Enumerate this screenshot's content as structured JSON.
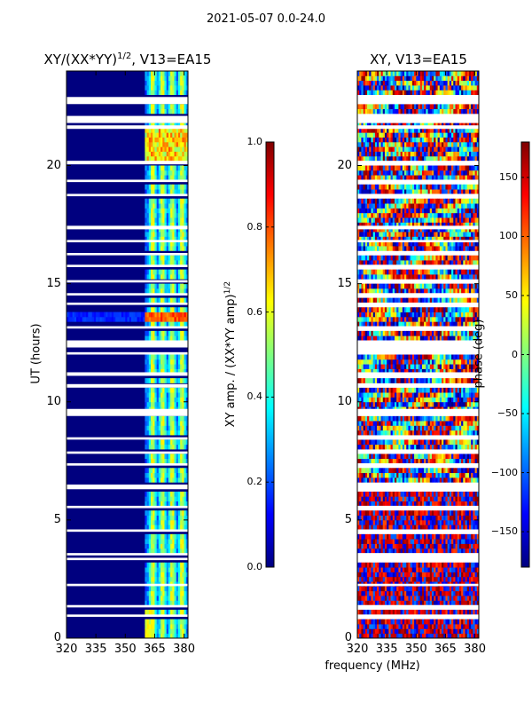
{
  "figure": {
    "suptitle": "2021-05-07 0.0-24.0"
  },
  "colors": {
    "jet": [
      "#00007f",
      "#0000ff",
      "#007fff",
      "#00ffff",
      "#7fff7f",
      "#ffff00",
      "#ff7f00",
      "#ff0000",
      "#7f0000"
    ],
    "gap": "#ffffff",
    "axis": "#000000"
  },
  "chart_data": [
    {
      "type": "heatmap",
      "title_main": "XY/(XX*YY)",
      "title_sup": "1/2",
      "title_suffix": ", V13=EA15",
      "xlabel": "",
      "ylabel": "UT (hours)",
      "xlim": [
        320,
        382
      ],
      "ylim": [
        0,
        24
      ],
      "xticks": [
        320,
        335,
        350,
        365,
        380
      ],
      "yticks": [
        0,
        5,
        10,
        15,
        20
      ],
      "colorbar": {
        "label_main": "XY amp. / (XX*YY amp)",
        "label_sup": "1/2",
        "range": [
          0.0,
          1.0
        ],
        "ticks": [
          "0.0",
          "0.2",
          "0.4",
          "0.6",
          "0.8",
          "1.0"
        ],
        "tick_values": [
          0.0,
          0.2,
          0.4,
          0.6,
          0.8,
          1.0
        ]
      },
      "quantity": "amplitude",
      "band_start_mhz": 360,
      "band_peaks_mhz": [
        364,
        369,
        374,
        379
      ],
      "hot_time_hours": [
        13.4,
        13.8
      ],
      "hot_time2_hours": [
        20.2,
        21.6
      ]
    },
    {
      "type": "heatmap",
      "title_main": "XY, V13=EA15",
      "xlabel": "frequency (MHz)",
      "ylabel": "",
      "xlim": [
        320,
        382
      ],
      "ylim": [
        0,
        24
      ],
      "xticks": [
        320,
        335,
        350,
        365,
        380
      ],
      "yticks": [
        0,
        5,
        10,
        15,
        20
      ],
      "colorbar": {
        "label_main": "phase (deg)",
        "range": [
          -180,
          180
        ],
        "ticks": [
          "−150",
          "−100",
          "−50",
          "0",
          "50",
          "100",
          "150"
        ],
        "tick_values": [
          -150,
          -100,
          -50,
          0,
          50,
          100,
          150
        ]
      },
      "quantity": "phase"
    }
  ],
  "gaps_hours": [
    [
      22.6,
      22.9
    ],
    [
      21.8,
      22.1
    ],
    [
      21.55,
      21.7
    ],
    [
      20.05,
      20.2
    ],
    [
      19.3,
      19.4
    ],
    [
      18.7,
      18.8
    ],
    [
      17.3,
      17.45
    ],
    [
      16.75,
      16.85
    ],
    [
      16.2,
      16.3
    ],
    [
      15.7,
      15.8
    ],
    [
      15.05,
      15.15
    ],
    [
      14.5,
      14.6
    ],
    [
      14.1,
      14.2
    ],
    [
      13.1,
      13.2
    ],
    [
      12.3,
      12.6
    ],
    [
      12.0,
      12.1
    ],
    [
      11.1,
      11.25
    ],
    [
      10.6,
      10.75
    ],
    [
      9.4,
      9.7
    ],
    [
      8.4,
      8.5
    ],
    [
      7.8,
      7.9
    ],
    [
      7.3,
      7.4
    ],
    [
      6.3,
      6.5
    ],
    [
      5.5,
      5.6
    ],
    [
      4.5,
      4.6
    ],
    [
      3.5,
      3.6
    ],
    [
      3.3,
      3.4
    ],
    [
      2.2,
      2.3
    ],
    [
      1.3,
      1.4
    ],
    [
      0.9,
      1.0
    ]
  ]
}
